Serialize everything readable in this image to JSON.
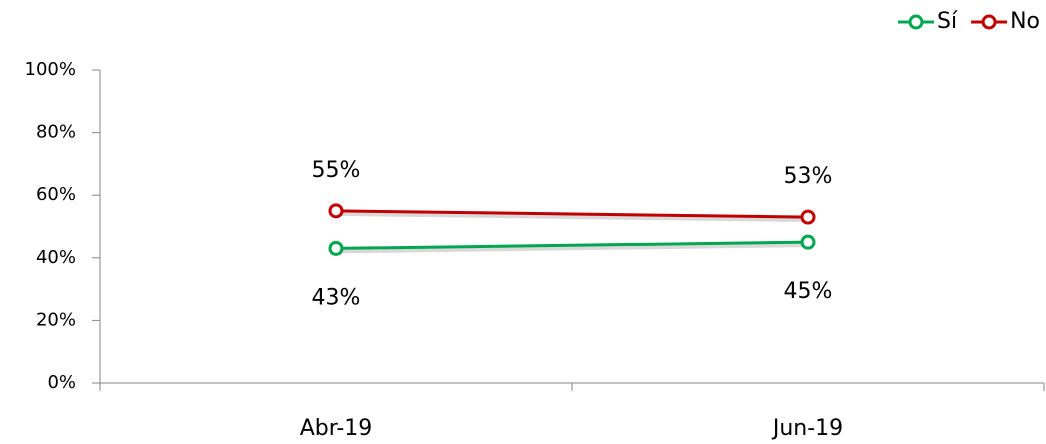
{
  "chart_data": {
    "type": "line",
    "categories": [
      "Abr-19",
      "Jun-19"
    ],
    "series": [
      {
        "name": "Sí",
        "color": "#00a650",
        "values": [
          43,
          45
        ],
        "value_labels": [
          "43%",
          "45%"
        ]
      },
      {
        "name": "No",
        "color": "#c00000",
        "values": [
          55,
          53
        ],
        "value_labels": [
          "55%",
          "53%"
        ]
      }
    ],
    "ylim": [
      0,
      100
    ],
    "yticks": [
      {
        "value": 0,
        "label": "0%"
      },
      {
        "value": 20,
        "label": "20%"
      },
      {
        "value": 40,
        "label": "40%"
      },
      {
        "value": 60,
        "label": "60%"
      },
      {
        "value": 80,
        "label": "80%"
      },
      {
        "value": 100,
        "label": "100%"
      }
    ],
    "grid": false,
    "legend": "top-right"
  }
}
